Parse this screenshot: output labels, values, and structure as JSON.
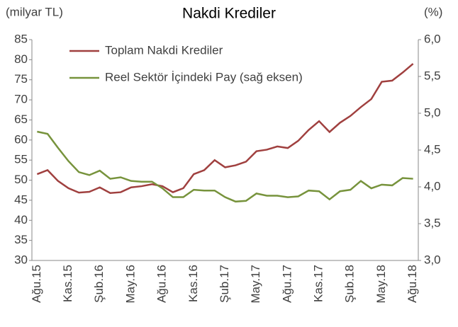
{
  "chart_data": {
    "type": "line",
    "title": "Nakdi Krediler",
    "y_label": "(milyar TL)",
    "y2_label": "(%)",
    "categories": [
      "Ağu.15",
      null,
      null,
      "Kas.15",
      null,
      null,
      "Şub.16",
      null,
      null,
      "May.16",
      null,
      null,
      "Ağu.16",
      null,
      null,
      "Kas.16",
      null,
      null,
      "Şub.17",
      null,
      null,
      "May.17",
      null,
      null,
      "Ağu.17",
      null,
      null,
      "Kas.17",
      null,
      null,
      "Şub.18",
      null,
      null,
      "May.18",
      null,
      null,
      "Ağu.18"
    ],
    "series": [
      {
        "name": "Toplam Nakdi Krediler",
        "color": "#a0403f",
        "values": [
          51.5,
          52.5,
          49.8,
          48,
          46.9,
          47.1,
          48.2,
          46.8,
          47,
          48.2,
          48.5,
          49,
          48.5,
          47,
          48,
          51.5,
          52.5,
          55,
          53.2,
          53.7,
          54.6,
          57.2,
          57.6,
          58.4,
          58,
          59.8,
          62.5,
          64.7,
          62,
          64.3,
          66,
          68.2,
          70.2,
          74.5,
          74.8,
          76.8,
          79
        ]
      },
      {
        "name": "Reel Sektör İçindeki Pay (sağ eksen)",
        "color": "#77933c",
        "axis": "y2",
        "values": [
          4.75,
          4.72,
          4.53,
          4.35,
          4.2,
          4.16,
          4.22,
          4.11,
          4.13,
          4.08,
          4.07,
          4.07,
          3.98,
          3.86,
          3.86,
          3.96,
          3.95,
          3.95,
          3.86,
          3.8,
          3.81,
          3.91,
          3.88,
          3.88,
          3.86,
          3.87,
          3.95,
          3.94,
          3.83,
          3.94,
          3.96,
          4.08,
          3.98,
          4.03,
          4.02,
          4.12,
          4.11
        ]
      }
    ],
    "ylim": [
      30,
      85
    ],
    "yticks": [
      30,
      35,
      40,
      45,
      50,
      55,
      60,
      65,
      70,
      75,
      80,
      85
    ],
    "y2lim": [
      3,
      6
    ],
    "y2ticks": [
      {
        "value": 3,
        "label": "3,0"
      },
      {
        "value": 3.5,
        "label": "3,5"
      },
      {
        "value": 4,
        "label": "4,0"
      },
      {
        "value": 4.5,
        "label": "4,5"
      },
      {
        "value": 5,
        "label": "5,0"
      },
      {
        "value": 5.5,
        "label": "5,5"
      },
      {
        "value": 6,
        "label": "6,0"
      }
    ],
    "legend": "top-left",
    "grid": false
  }
}
